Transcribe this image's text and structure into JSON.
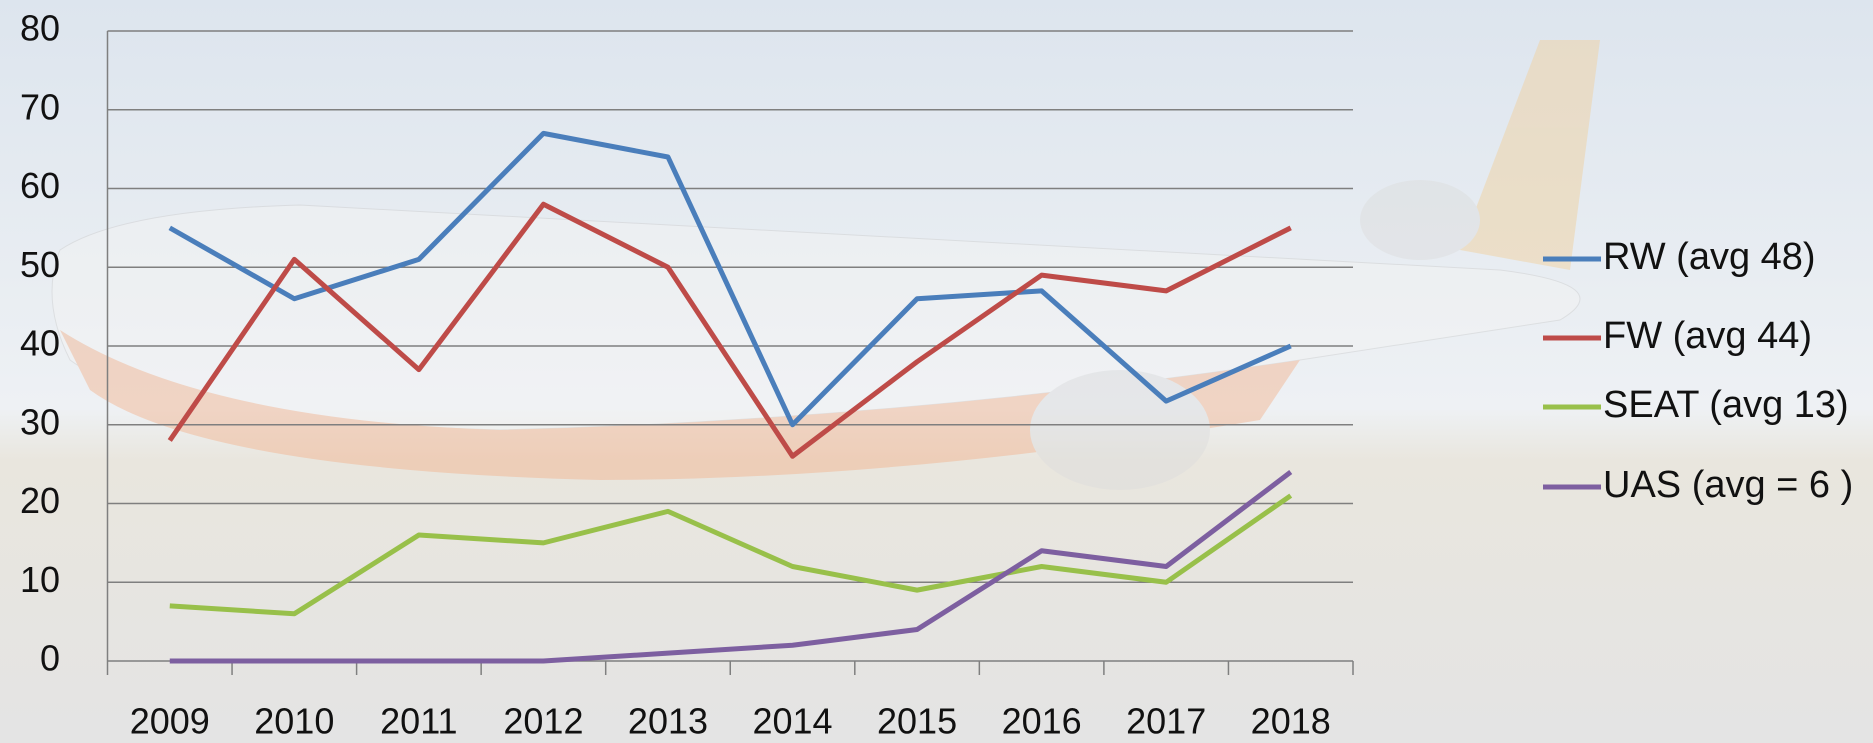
{
  "chart_data": {
    "type": "line",
    "categories": [
      "2009",
      "2010",
      "2011",
      "2012",
      "2013",
      "2014",
      "2015",
      "2016",
      "2017",
      "2018"
    ],
    "series": [
      {
        "name": "RW (avg 48)",
        "color": "#4a7ebb",
        "values": [
          55,
          46,
          51,
          67,
          64,
          30,
          46,
          47,
          33,
          40
        ]
      },
      {
        "name": "FW (avg 44)",
        "color": "#be4b48",
        "values": [
          28,
          51,
          37,
          58,
          50,
          26,
          38,
          49,
          47,
          55
        ]
      },
      {
        "name": "SEAT (avg 13)",
        "color": "#98c04a",
        "values": [
          7,
          6,
          16,
          15,
          19,
          12,
          9,
          12,
          10,
          21
        ]
      },
      {
        "name": "UAS (avg = 6 )",
        "color": "#7d5fa0",
        "values": [
          0,
          0,
          0,
          0,
          1,
          2,
          4,
          14,
          12,
          24
        ]
      }
    ],
    "ylim": [
      0,
      80
    ],
    "yticks": [
      0,
      10,
      20,
      30,
      40,
      50,
      60,
      70,
      80
    ],
    "grid": true,
    "legend": "right"
  }
}
